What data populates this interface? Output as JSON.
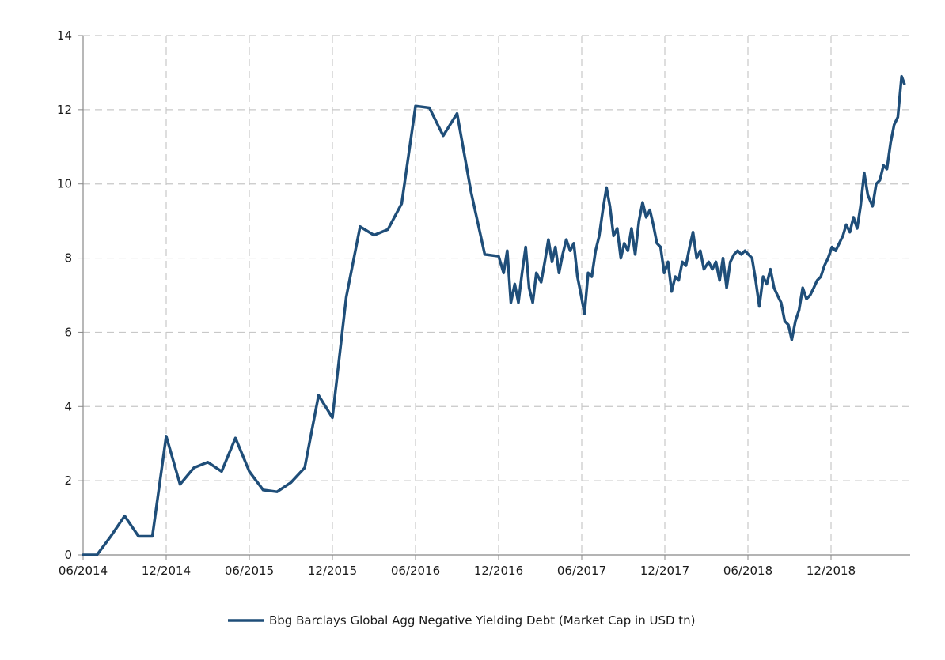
{
  "chart_data": {
    "type": "line",
    "title": "",
    "xlabel": "",
    "ylabel": "",
    "ylim": [
      0,
      14
    ],
    "y_ticks": [
      0,
      2,
      4,
      6,
      8,
      10,
      12,
      14
    ],
    "x_ticks": [
      "06/2014",
      "12/2014",
      "06/2015",
      "12/2015",
      "06/2016",
      "12/2016",
      "06/2017",
      "12/2017",
      "06/2018",
      "12/2018"
    ],
    "grid": true,
    "legend_position": "bottom-center",
    "colors": {
      "series": "#1f4e79",
      "grid": "#c8c8c8",
      "axis": "#888888"
    },
    "series": [
      {
        "name": "Bbg Barclays Global Agg Negative Yielding Debt (Market Cap in USD tn)",
        "points": [
          [
            "2014-06-01",
            0.0
          ],
          [
            "2014-07-01",
            0.0
          ],
          [
            "2014-08-01",
            0.5
          ],
          [
            "2014-09-01",
            1.05
          ],
          [
            "2014-10-01",
            0.5
          ],
          [
            "2014-11-01",
            0.5
          ],
          [
            "2014-12-01",
            3.2
          ],
          [
            "2015-01-01",
            1.9
          ],
          [
            "2015-02-01",
            2.35
          ],
          [
            "2015-03-01",
            2.5
          ],
          [
            "2015-04-01",
            2.25
          ],
          [
            "2015-05-01",
            3.15
          ],
          [
            "2015-06-01",
            2.25
          ],
          [
            "2015-07-01",
            1.75
          ],
          [
            "2015-08-01",
            1.7
          ],
          [
            "2015-09-01",
            1.95
          ],
          [
            "2015-10-01",
            2.35
          ],
          [
            "2015-11-01",
            4.3
          ],
          [
            "2015-12-01",
            3.7
          ],
          [
            "2016-01-01",
            6.95
          ],
          [
            "2016-02-01",
            8.85
          ],
          [
            "2016-03-01",
            8.62
          ],
          [
            "2016-04-01",
            8.77
          ],
          [
            "2016-05-01",
            9.47
          ],
          [
            "2016-06-01",
            12.1
          ],
          [
            "2016-07-01",
            12.05
          ],
          [
            "2016-08-01",
            11.3
          ],
          [
            "2016-09-01",
            11.9
          ],
          [
            "2016-10-01",
            9.8
          ],
          [
            "2016-11-01",
            8.1
          ],
          [
            "2016-12-01",
            8.05
          ],
          [
            "2016-12-12",
            7.6
          ],
          [
            "2016-12-20",
            8.2
          ],
          [
            "2016-12-28",
            6.8
          ],
          [
            "2017-01-06",
            7.3
          ],
          [
            "2017-01-14",
            6.8
          ],
          [
            "2017-01-22",
            7.6
          ],
          [
            "2017-01-30",
            8.3
          ],
          [
            "2017-02-07",
            7.2
          ],
          [
            "2017-02-15",
            6.8
          ],
          [
            "2017-02-23",
            7.6
          ],
          [
            "2017-03-03",
            7.35
          ],
          [
            "2017-03-11",
            7.9
          ],
          [
            "2017-03-19",
            8.5
          ],
          [
            "2017-03-27",
            7.9
          ],
          [
            "2017-04-04",
            8.3
          ],
          [
            "2017-04-12",
            7.6
          ],
          [
            "2017-04-20",
            8.1
          ],
          [
            "2017-04-28",
            8.5
          ],
          [
            "2017-05-06",
            8.2
          ],
          [
            "2017-05-14",
            8.4
          ],
          [
            "2017-05-22",
            7.5
          ],
          [
            "2017-05-30",
            7.0
          ],
          [
            "2017-06-07",
            6.5
          ],
          [
            "2017-06-15",
            7.6
          ],
          [
            "2017-06-23",
            7.5
          ],
          [
            "2017-07-01",
            8.2
          ],
          [
            "2017-07-09",
            8.6
          ],
          [
            "2017-07-17",
            9.3
          ],
          [
            "2017-07-25",
            9.9
          ],
          [
            "2017-08-02",
            9.4
          ],
          [
            "2017-08-10",
            8.6
          ],
          [
            "2017-08-18",
            8.8
          ],
          [
            "2017-08-26",
            8.0
          ],
          [
            "2017-09-03",
            8.4
          ],
          [
            "2017-09-11",
            8.2
          ],
          [
            "2017-09-19",
            8.8
          ],
          [
            "2017-09-27",
            8.1
          ],
          [
            "2017-10-05",
            9.0
          ],
          [
            "2017-10-13",
            9.5
          ],
          [
            "2017-10-21",
            9.1
          ],
          [
            "2017-10-29",
            9.3
          ],
          [
            "2017-11-06",
            8.9
          ],
          [
            "2017-11-14",
            8.4
          ],
          [
            "2017-11-22",
            8.3
          ],
          [
            "2017-11-30",
            7.6
          ],
          [
            "2017-12-08",
            7.9
          ],
          [
            "2017-12-16",
            7.1
          ],
          [
            "2017-12-24",
            7.5
          ],
          [
            "2018-01-01",
            7.4
          ],
          [
            "2018-01-09",
            7.9
          ],
          [
            "2018-01-17",
            7.8
          ],
          [
            "2018-01-25",
            8.3
          ],
          [
            "2018-02-02",
            8.7
          ],
          [
            "2018-02-10",
            8.0
          ],
          [
            "2018-02-18",
            8.2
          ],
          [
            "2018-02-26",
            7.7
          ],
          [
            "2018-03-06",
            7.9
          ],
          [
            "2018-03-14",
            7.7
          ],
          [
            "2018-03-22",
            7.9
          ],
          [
            "2018-03-30",
            7.4
          ],
          [
            "2018-04-07",
            8.0
          ],
          [
            "2018-04-15",
            7.2
          ],
          [
            "2018-04-23",
            7.9
          ],
          [
            "2018-05-01",
            8.1
          ],
          [
            "2018-05-09",
            8.2
          ],
          [
            "2018-05-17",
            8.1
          ],
          [
            "2018-05-25",
            8.2
          ],
          [
            "2018-06-02",
            8.1
          ],
          [
            "2018-06-10",
            8.0
          ],
          [
            "2018-06-18",
            7.4
          ],
          [
            "2018-06-26",
            6.7
          ],
          [
            "2018-07-04",
            7.5
          ],
          [
            "2018-07-12",
            7.3
          ],
          [
            "2018-07-20",
            7.7
          ],
          [
            "2018-07-28",
            7.2
          ],
          [
            "2018-08-05",
            7.0
          ],
          [
            "2018-08-13",
            6.8
          ],
          [
            "2018-08-21",
            6.3
          ],
          [
            "2018-08-29",
            6.2
          ],
          [
            "2018-09-06",
            5.8
          ],
          [
            "2018-09-14",
            6.3
          ],
          [
            "2018-09-22",
            6.6
          ],
          [
            "2018-09-30",
            7.2
          ],
          [
            "2018-10-08",
            6.9
          ],
          [
            "2018-10-16",
            7.0
          ],
          [
            "2018-10-24",
            7.2
          ],
          [
            "2018-11-01",
            7.4
          ],
          [
            "2018-11-09",
            7.5
          ],
          [
            "2018-11-17",
            7.8
          ],
          [
            "2018-11-25",
            8.0
          ],
          [
            "2018-12-03",
            8.3
          ],
          [
            "2018-12-11",
            8.2
          ],
          [
            "2018-12-19",
            8.4
          ],
          [
            "2018-12-27",
            8.6
          ],
          [
            "2019-01-04",
            8.9
          ],
          [
            "2019-01-12",
            8.7
          ],
          [
            "2019-01-20",
            9.1
          ],
          [
            "2019-01-28",
            8.8
          ],
          [
            "2019-02-05",
            9.4
          ],
          [
            "2019-02-13",
            10.3
          ],
          [
            "2019-02-21",
            9.7
          ],
          [
            "2019-03-01",
            9.4
          ],
          [
            "2019-03-09",
            10.0
          ],
          [
            "2019-03-17",
            10.1
          ],
          [
            "2019-03-25",
            10.5
          ],
          [
            "2019-04-02",
            10.4
          ],
          [
            "2019-04-10",
            11.1
          ],
          [
            "2019-04-18",
            11.6
          ],
          [
            "2019-04-26",
            11.8
          ],
          [
            "2019-05-04",
            12.9
          ],
          [
            "2019-05-10",
            12.7
          ]
        ]
      }
    ]
  }
}
